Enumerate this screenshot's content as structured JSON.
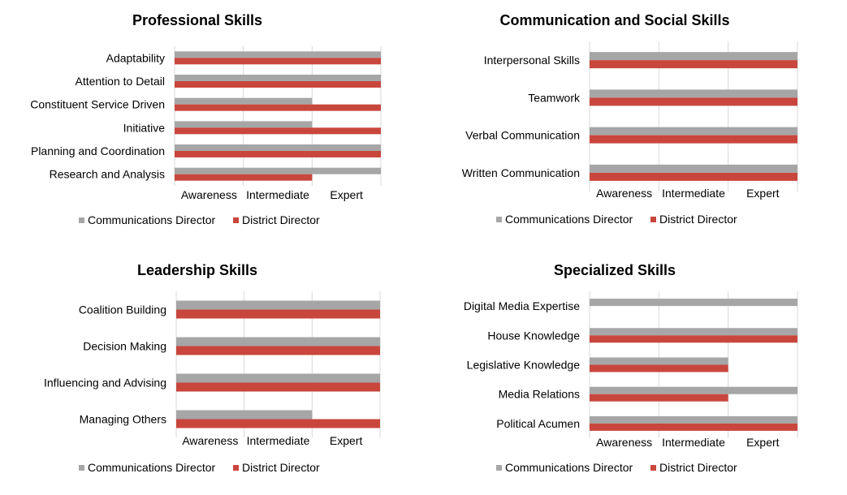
{
  "colors": {
    "communications_director": "#a6a6a6",
    "district_director": "#c9463d",
    "gridline": "#d9d9d9"
  },
  "chart_data": [
    {
      "type": "bar",
      "orientation": "horizontal",
      "title": "Professional Skills",
      "categories": [
        "Adaptability",
        "Attention to Detail",
        "Constituent Service Driven",
        "Initiative",
        "Planning and Coordination",
        "Research and Analysis"
      ],
      "series": [
        {
          "name": "Communications Director",
          "values": [
            3,
            3,
            2,
            2,
            3,
            3
          ]
        },
        {
          "name": "District Director",
          "values": [
            3,
            3,
            3,
            3,
            3,
            2
          ]
        }
      ],
      "xticks": [
        "Awareness",
        "Intermediate",
        "Expert"
      ],
      "xlim": [
        0,
        3
      ],
      "legend": "bottom"
    },
    {
      "type": "bar",
      "orientation": "horizontal",
      "title": "Communication and Social Skills",
      "categories": [
        "Interpersonal Skills",
        "Teamwork",
        "Verbal Communication",
        "Written Communication"
      ],
      "series": [
        {
          "name": "Communications Director",
          "values": [
            3,
            3,
            3,
            3
          ]
        },
        {
          "name": "District Director",
          "values": [
            3,
            3,
            3,
            3
          ]
        }
      ],
      "xticks": [
        "Awareness",
        "Intermediate",
        "Expert"
      ],
      "xlim": [
        0,
        3
      ],
      "legend": "bottom"
    },
    {
      "type": "bar",
      "orientation": "horizontal",
      "title": "Leadership Skills",
      "categories": [
        "Coalition Building",
        "Decision Making",
        "Influencing and Advising",
        "Managing Others"
      ],
      "series": [
        {
          "name": "Communications Director",
          "values": [
            3,
            3,
            3,
            2
          ]
        },
        {
          "name": "District Director",
          "values": [
            3,
            3,
            3,
            3
          ]
        }
      ],
      "xticks": [
        "Awareness",
        "Intermediate",
        "Expert"
      ],
      "xlim": [
        0,
        3
      ],
      "legend": "bottom"
    },
    {
      "type": "bar",
      "orientation": "horizontal",
      "title": "Specialized Skills",
      "categories": [
        "Digital Media Expertise",
        "House Knowledge",
        "Legislative Knowledge",
        "Media Relations",
        "Political Acumen"
      ],
      "series": [
        {
          "name": "Communications Director",
          "values": [
            3,
            3,
            2,
            3,
            3
          ]
        },
        {
          "name": "District Director",
          "values": [
            0,
            3,
            2,
            2,
            3
          ]
        }
      ],
      "xticks": [
        "Awareness",
        "Intermediate",
        "Expert"
      ],
      "xlim": [
        0,
        3
      ],
      "legend": "bottom"
    }
  ]
}
